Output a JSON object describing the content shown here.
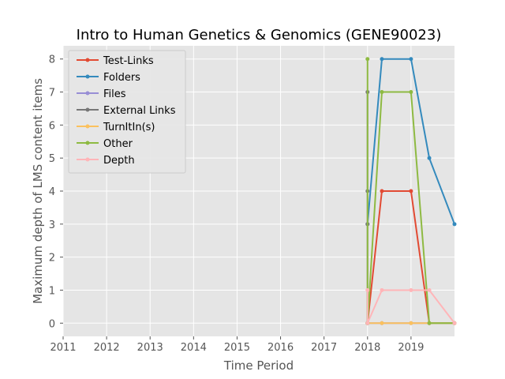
{
  "chart_data": {
    "type": "line",
    "title": "Intro to Human Genetics & Genomics (GENE90023)",
    "xlabel": "Time Period",
    "ylabel": "Maximum depth of LMS content items",
    "xlim": [
      2011,
      2020.0
    ],
    "ylim": [
      -0.4,
      8.4
    ],
    "x_ticks": [
      2011,
      2012,
      2013,
      2014,
      2015,
      2016,
      2017,
      2018,
      2019
    ],
    "y_ticks": [
      0,
      1,
      2,
      3,
      4,
      5,
      6,
      7,
      8
    ],
    "grid": true,
    "legend_position": "upper-left",
    "series": [
      {
        "name": "Test-Links",
        "color": "#E24A33",
        "x": [
          2018.0,
          2018.33,
          2019.0,
          2019.42,
          2020.0
        ],
        "y": [
          0,
          4,
          4,
          0,
          0
        ]
      },
      {
        "name": "Folders",
        "color": "#348ABD",
        "x": [
          2018.0,
          2018.33,
          2019.0,
          2019.42,
          2020.0
        ],
        "y": [
          3,
          8,
          8,
          5,
          3
        ]
      },
      {
        "name": "Files",
        "color": "#988ED5",
        "x": [
          2018.0,
          2018.33,
          2019.0,
          2019.42,
          2020.0
        ],
        "y": [
          0,
          0,
          0,
          0,
          0
        ]
      },
      {
        "name": "External Links",
        "color": "#777777",
        "x": [
          2018.0,
          2018.0,
          2018.0,
          2018.0
        ],
        "y": [
          7,
          4,
          3,
          0
        ]
      },
      {
        "name": "TurnItIn(s)",
        "color": "#FBC15E",
        "x": [
          2018.0,
          2018.33,
          2019.0,
          2019.42,
          2020.0
        ],
        "y": [
          0,
          0,
          0,
          0,
          0
        ]
      },
      {
        "name": "Other",
        "color": "#8EBA42",
        "x": [
          2018.0,
          2018.0,
          2018.33,
          2019.0,
          2019.42,
          2020.0
        ],
        "y": [
          8,
          0,
          7,
          7,
          0,
          0
        ]
      },
      {
        "name": "Depth",
        "color": "#FFB5B8",
        "x": [
          2018.0,
          2018.0,
          2018.33,
          2019.0,
          2019.42,
          2020.0
        ],
        "y": [
          1,
          0,
          1,
          1,
          1,
          0
        ]
      }
    ]
  }
}
